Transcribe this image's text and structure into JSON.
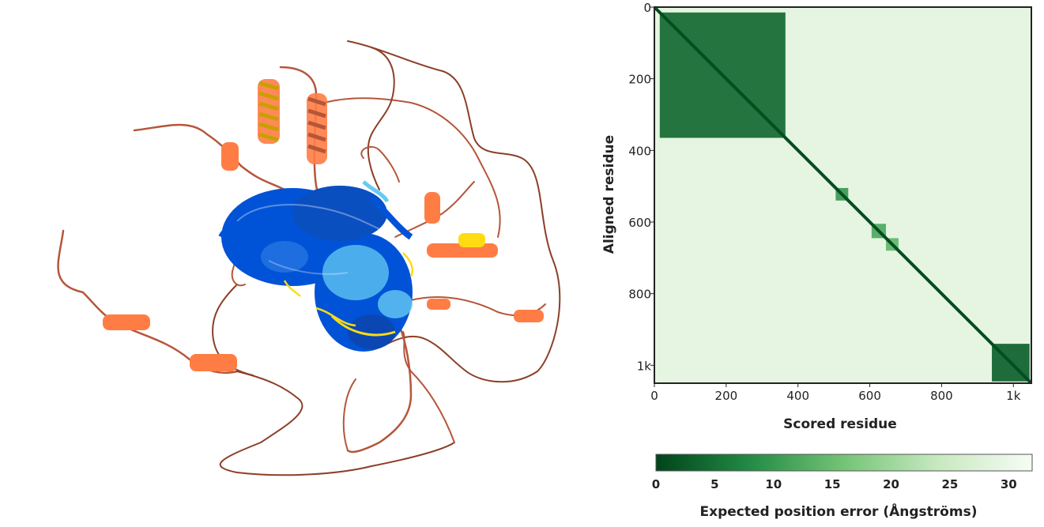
{
  "structure_view": {
    "colors": {
      "very_high": "#0053d6",
      "confident": "#65cbf3",
      "low": "#ffdb13",
      "very_low": "#ff7d45",
      "loop": "#b5563a"
    }
  },
  "chart_data": {
    "type": "heatmap",
    "title": "",
    "xlabel": "Scored residue",
    "ylabel": "Aligned residue",
    "residue_count": 1050,
    "xlim": [
      0,
      1050
    ],
    "ylim": [
      0,
      1050
    ],
    "x_ticks": [
      {
        "value": 0,
        "label": "0"
      },
      {
        "value": 200,
        "label": "200"
      },
      {
        "value": 400,
        "label": "400"
      },
      {
        "value": 600,
        "label": "600"
      },
      {
        "value": 800,
        "label": "800"
      },
      {
        "value": 1000,
        "label": "1k"
      }
    ],
    "y_ticks": [
      {
        "value": 0,
        "label": "0"
      },
      {
        "value": 200,
        "label": "200"
      },
      {
        "value": 400,
        "label": "400"
      },
      {
        "value": 600,
        "label": "600"
      },
      {
        "value": 800,
        "label": "800"
      },
      {
        "value": 1000,
        "label": "1k"
      }
    ],
    "diagonal_error": 1,
    "background_error": 29,
    "blocks": [
      {
        "start": 15,
        "end": 365,
        "error": 4
      },
      {
        "start": 940,
        "end": 1045,
        "error": 3
      },
      {
        "start": 505,
        "end": 540,
        "error": 10
      },
      {
        "start": 605,
        "end": 645,
        "error": 12
      },
      {
        "start": 645,
        "end": 680,
        "error": 14
      }
    ],
    "colorbar": {
      "label": "Expected position error (Ångströms)",
      "min": 0,
      "max": 32,
      "ticks": [
        0,
        5,
        10,
        15,
        20,
        25,
        30
      ],
      "colors": [
        "#00441b",
        "#238b45",
        "#74c476",
        "#c7e9c0",
        "#f7fcf5"
      ]
    }
  }
}
